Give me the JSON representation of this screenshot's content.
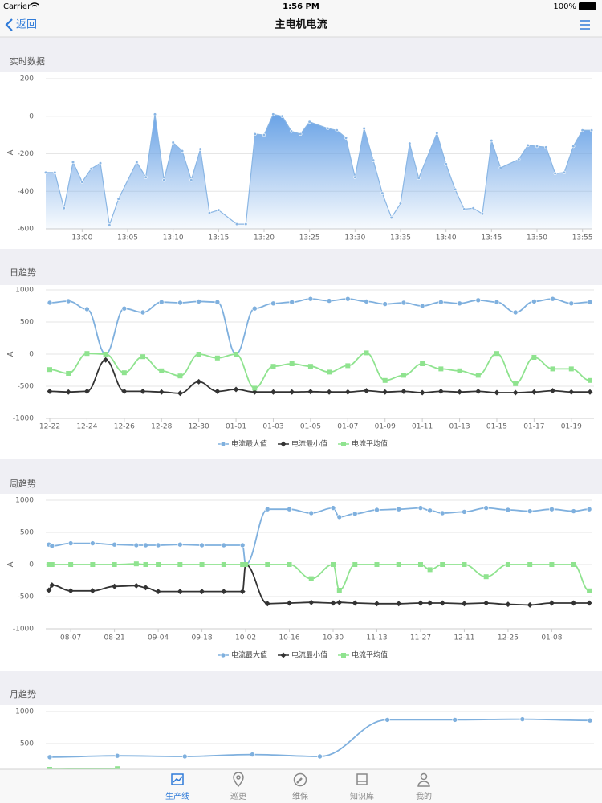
{
  "status_bar": {
    "carrier": "Carrier",
    "time": "1:56 PM",
    "battery": "100%"
  },
  "nav": {
    "back": "返回",
    "title": "主电机电流"
  },
  "chart_data": [
    {
      "type": "area",
      "title": "实时数据",
      "ylabel": "A",
      "color": "#8ab6e4",
      "marker": "circle",
      "x": [
        "12:56",
        "12:57",
        "12:58",
        "12:59",
        "13:00",
        "13:01",
        "13:02",
        "13:03",
        "13:04",
        "13:06",
        "13:07",
        "13:08",
        "13:09",
        "13:10",
        "13:11",
        "13:12",
        "13:13",
        "13:14",
        "13:15",
        "13:17",
        "13:18",
        "13:19",
        "13:20",
        "13:21",
        "13:22",
        "13:23",
        "13:24",
        "13:25",
        "13:27",
        "13:28",
        "13:29",
        "13:30",
        "13:31",
        "13:32",
        "13:33",
        "13:34",
        "13:35",
        "13:36",
        "13:37",
        "13:39",
        "13:40",
        "13:41",
        "13:42",
        "13:43",
        "13:44",
        "13:45",
        "13:46",
        "13:48",
        "13:49",
        "13:50",
        "13:51",
        "13:52",
        "13:53",
        "13:54",
        "13:55",
        "13:56"
      ],
      "values": [
        -300,
        -300,
        -490,
        -245,
        -350,
        -280,
        -250,
        -580,
        -440,
        -245,
        -325,
        10,
        -340,
        -140,
        -185,
        -340,
        -175,
        -515,
        -500,
        -575,
        -575,
        -95,
        -100,
        10,
        0,
        -80,
        -95,
        -30,
        -65,
        -75,
        -115,
        -325,
        -65,
        -235,
        -410,
        -540,
        -465,
        -145,
        -330,
        -90,
        -255,
        -390,
        -495,
        -490,
        -520,
        -130,
        -275,
        -230,
        -155,
        -160,
        -165,
        -305,
        -300,
        -160,
        -75,
        -75
      ],
      "xlim": [
        "12:56",
        "13:56"
      ],
      "xticks": [
        "13:00",
        "13:05",
        "13:10",
        "13:15",
        "13:20",
        "13:25",
        "13:30",
        "13:35",
        "13:40",
        "13:45",
        "13:50",
        "13:55"
      ],
      "ylim": [
        -600,
        200
      ],
      "yticks": [
        -600,
        -400,
        -200,
        0,
        200
      ],
      "grid": true
    },
    {
      "type": "line",
      "title": "日趋势",
      "ylabel": "A",
      "categories": [
        "12-22",
        null,
        "12-24",
        null,
        "12-26",
        null,
        "12-28",
        null,
        "12-30",
        null,
        "01-01",
        null,
        "01-03",
        null,
        "01-05",
        null,
        "01-07",
        null,
        "01-09",
        null,
        "01-11",
        null,
        "01-13",
        null,
        "01-15",
        null,
        "01-17",
        null,
        "01-19",
        null
      ],
      "series": [
        {
          "name": "电流最大值",
          "color": "#7fb0de",
          "marker": "circle",
          "values": [
            800,
            825,
            700,
            0,
            710,
            650,
            810,
            800,
            820,
            810,
            0,
            710,
            790,
            810,
            860,
            830,
            860,
            820,
            780,
            800,
            750,
            810,
            790,
            840,
            810,
            650,
            820,
            860,
            790,
            810
          ]
        },
        {
          "name": "电流最小值",
          "color": "#333333",
          "marker": "diamond",
          "values": [
            -580,
            -590,
            -580,
            -90,
            -580,
            -580,
            -590,
            -610,
            -430,
            -580,
            -550,
            -590,
            -590,
            -590,
            -585,
            -590,
            -590,
            -570,
            -590,
            -580,
            -600,
            -580,
            -590,
            -580,
            -600,
            -600,
            -590,
            -570,
            -590,
            -590
          ]
        },
        {
          "name": "电流平均值",
          "color": "#8fe38f",
          "marker": "square",
          "values": [
            -240,
            -300,
            10,
            0,
            -290,
            -40,
            -260,
            -340,
            0,
            -60,
            0,
            -530,
            -190,
            -150,
            -190,
            -280,
            -180,
            20,
            -410,
            -330,
            -150,
            -230,
            -260,
            -330,
            10,
            -460,
            -50,
            -230,
            -230,
            -410
          ]
        }
      ],
      "ylim": [
        -1000,
        1000
      ],
      "yticks": [
        -1000,
        -500,
        0,
        500,
        1000
      ],
      "grid": true
    },
    {
      "type": "line",
      "title": "周趋势",
      "ylabel": "A",
      "x": [
        "07-31",
        "08-01",
        "08-07",
        "08-14",
        "08-21",
        "08-28",
        "08-31",
        "09-04",
        "09-11",
        "09-18",
        "09-25",
        "10-01",
        "10-02",
        "10-09",
        "10-16",
        "10-23",
        "10-30",
        "11-01",
        "11-06",
        "11-13",
        "11-20",
        "11-27",
        "11-30",
        "12-04",
        "12-11",
        "12-18",
        "12-25",
        "01-01",
        "01-08",
        "01-15",
        "01-20"
      ],
      "series": [
        {
          "name": "电流最大值",
          "color": "#7fb0de",
          "marker": "circle",
          "values": [
            310,
            290,
            330,
            330,
            310,
            300,
            300,
            300,
            310,
            300,
            300,
            300,
            0,
            860,
            860,
            800,
            880,
            740,
            790,
            850,
            860,
            880,
            840,
            800,
            820,
            880,
            850,
            830,
            860,
            830,
            860
          ]
        },
        {
          "name": "电流最小值",
          "color": "#333333",
          "marker": "diamond",
          "values": [
            -400,
            -320,
            -410,
            -410,
            -340,
            -330,
            -360,
            -420,
            -420,
            -420,
            -420,
            -420,
            0,
            -610,
            -600,
            -590,
            -600,
            -590,
            -600,
            -610,
            -610,
            -600,
            -600,
            -600,
            -610,
            -600,
            -620,
            -630,
            -600,
            -600,
            -600
          ]
        },
        {
          "name": "电流平均值",
          "color": "#8fe38f",
          "marker": "square",
          "values": [
            0,
            0,
            0,
            0,
            0,
            10,
            0,
            0,
            0,
            0,
            0,
            0,
            0,
            0,
            0,
            -220,
            0,
            -400,
            0,
            0,
            0,
            0,
            -80,
            0,
            0,
            -190,
            0,
            0,
            0,
            0,
            -410
          ]
        }
      ],
      "xlim": [
        "07-30",
        "01-21"
      ],
      "xticks": [
        "08-07",
        "08-21",
        "09-04",
        "09-18",
        "10-02",
        "10-16",
        "10-30",
        "11-13",
        "11-27",
        "12-11",
        "12-25",
        "01-08"
      ],
      "ylim": [
        -1000,
        1000
      ],
      "yticks": [
        -1000,
        -500,
        0,
        500,
        1000
      ],
      "grid": true
    },
    {
      "type": "line",
      "title": "月趋势",
      "categories": [
        null,
        null,
        null,
        null,
        null,
        null,
        null,
        null,
        null
      ],
      "series": [
        {
          "color": "#7fb0de",
          "marker": "circle",
          "values": [
            290,
            310,
            300,
            330,
            300,
            870,
            870,
            880,
            860
          ]
        },
        {
          "color": "#8fe38f",
          "marker": "square",
          "values": [
            100,
            110,
            null,
            null,
            null,
            null,
            null,
            null,
            null
          ]
        }
      ],
      "ylim": [
        -1000,
        1000
      ],
      "yticks": [
        500,
        1000
      ],
      "grid": true
    }
  ],
  "tab_bar": {
    "tabs": [
      "生产线",
      "巡更",
      "维保",
      "知识库",
      "我的"
    ]
  }
}
